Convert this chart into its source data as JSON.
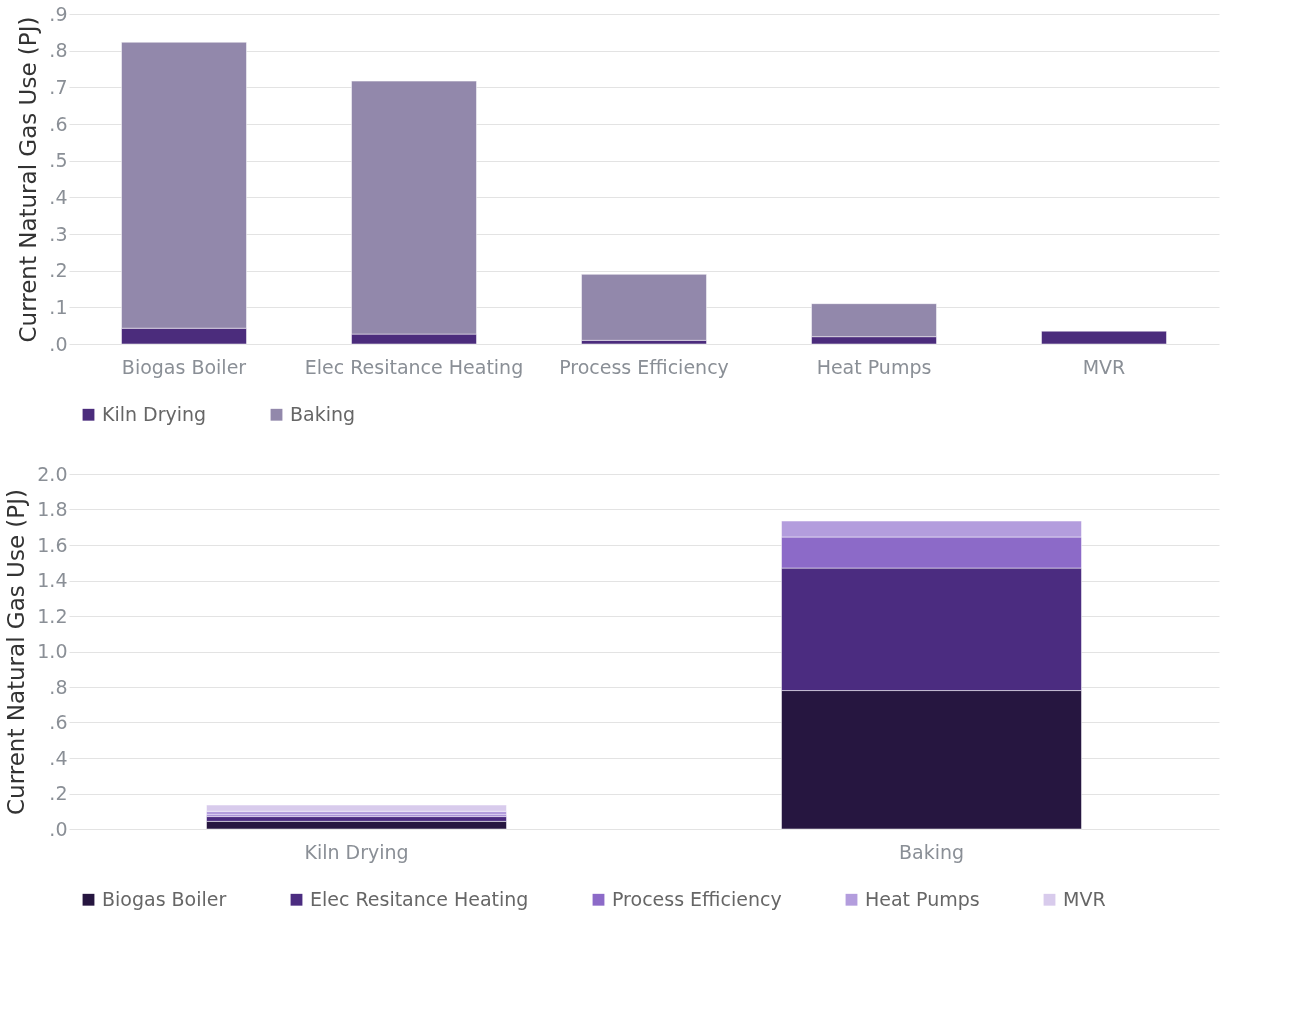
{
  "chart_data": [
    {
      "type": "bar",
      "stacked": true,
      "ylabel": "Current Natural Gas Use (PJ)",
      "categories": [
        "Biogas Boiler",
        "Elec Resitance Heating",
        "Process Efficiency",
        "Heat Pumps",
        "MVR"
      ],
      "series": [
        {
          "name": "Kiln Drying",
          "color": "#4b2c7c",
          "values": [
            0.043,
            0.027,
            0.01,
            0.02,
            0.035
          ]
        },
        {
          "name": "Baking",
          "color": "#9288ab",
          "values": [
            0.78,
            0.69,
            0.18,
            0.09,
            0
          ]
        }
      ],
      "ylim": [
        0,
        0.9
      ],
      "yticks": [
        {
          "value": 0,
          "label": ".0"
        },
        {
          "value": 0.1,
          "label": ".1"
        },
        {
          "value": 0.2,
          "label": ".2"
        },
        {
          "value": 0.3,
          "label": ".3"
        },
        {
          "value": 0.4,
          "label": ".4"
        },
        {
          "value": 0.5,
          "label": ".5"
        },
        {
          "value": 0.6,
          "label": ".6"
        },
        {
          "value": 0.7,
          "label": ".7"
        },
        {
          "value": 0.8,
          "label": ".8"
        },
        {
          "value": 0.9,
          "label": ".9"
        }
      ],
      "grid": "y",
      "legend": "bottom"
    },
    {
      "type": "bar",
      "stacked": true,
      "ylabel": "Current Natural Gas Use (PJ)",
      "categories": [
        "Kiln Drying",
        "Baking"
      ],
      "series": [
        {
          "name": "Biogas Boiler",
          "color": "#261640",
          "values": [
            0.043,
            0.78
          ]
        },
        {
          "name": "Elec Resitance Heating",
          "color": "#4b2c80",
          "values": [
            0.027,
            0.69
          ]
        },
        {
          "name": "Process Efficiency",
          "color": "#8c6ac8",
          "values": [
            0.01,
            0.175
          ]
        },
        {
          "name": "Heat Pumps",
          "color": "#b39ddd",
          "values": [
            0.02,
            0.09
          ]
        },
        {
          "name": "MVR",
          "color": "#d8cbec",
          "values": [
            0.035,
            0
          ]
        }
      ],
      "ylim": [
        0,
        2.0
      ],
      "yticks": [
        {
          "value": 0,
          "label": ".0"
        },
        {
          "value": 0.2,
          "label": ".2"
        },
        {
          "value": 0.4,
          "label": ".4"
        },
        {
          "value": 0.6,
          "label": ".6"
        },
        {
          "value": 0.8,
          "label": ".8"
        },
        {
          "value": 1.0,
          "label": "1.0"
        },
        {
          "value": 1.2,
          "label": "1.2"
        },
        {
          "value": 1.4,
          "label": "1.4"
        },
        {
          "value": 1.6,
          "label": "1.6"
        },
        {
          "value": 1.8,
          "label": "1.8"
        },
        {
          "value": 2.0,
          "label": "2.0"
        }
      ],
      "grid": "y",
      "legend": "bottom"
    }
  ]
}
